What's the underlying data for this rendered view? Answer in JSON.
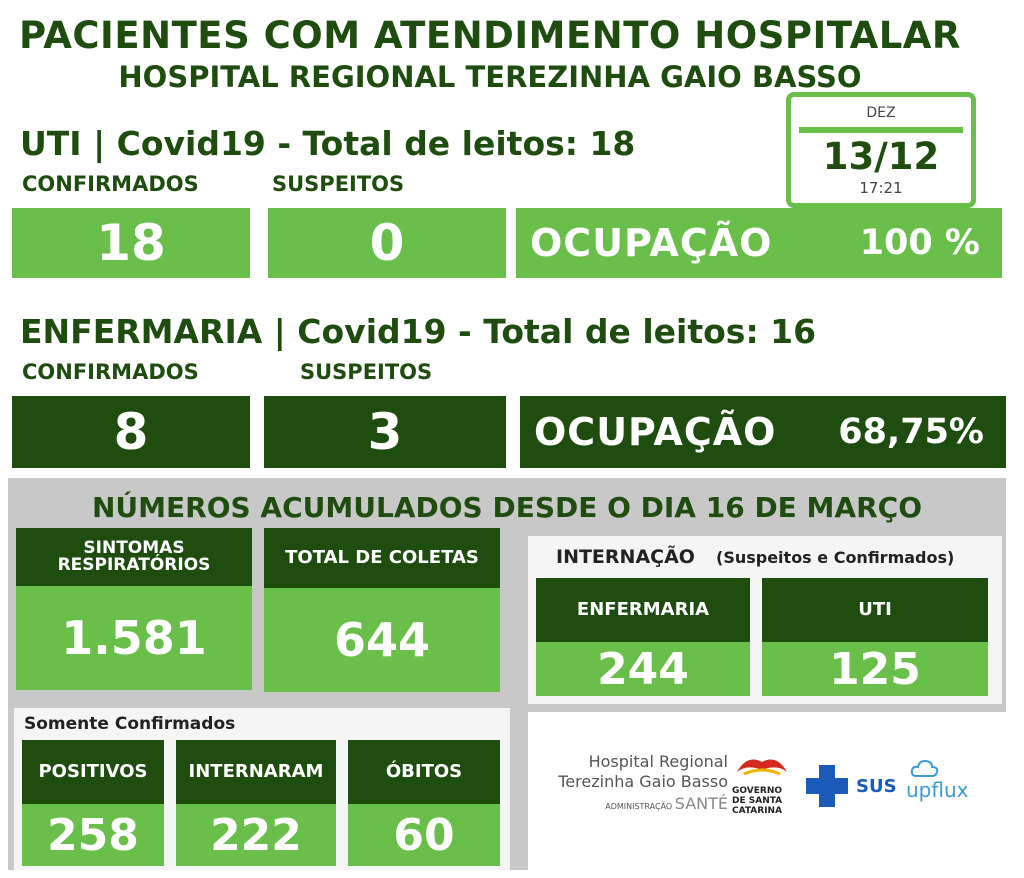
{
  "header": {
    "title": "PACIENTES COM ATENDIMENTO HOSPITALAR",
    "subtitle": "HOSPITAL REGIONAL TEREZINHA GAIO BASSO"
  },
  "date": {
    "month": "DEZ",
    "day": "13/12",
    "time": "17:21"
  },
  "uti": {
    "title": "UTI | Covid19 - Total de leitos: 18",
    "confirmed_label": "CONFIRMADOS",
    "suspect_label": "SUSPEITOS",
    "confirmed": "18",
    "suspect": "0",
    "occupancy_label": "OCUPAÇÃO",
    "occupancy": "100 %"
  },
  "enfermaria": {
    "title": "ENFERMARIA | Covid19 - Total de leitos: 16",
    "confirmed_label": "CONFIRMADOS",
    "suspect_label": "SUSPEITOS",
    "confirmed": "8",
    "suspect": "3",
    "occupancy_label": "OCUPAÇÃO",
    "occupancy": "68,75%"
  },
  "accumulated": {
    "title": "NÚMEROS ACUMULADOS DESDE O DIA 16 DE MARÇO",
    "sintomas_label": "SINTOMAS\nRESPIRATÓRIOS",
    "sintomas": "1.581",
    "coletas_label": "TOTAL DE COLETAS",
    "coletas": "644",
    "internacao_label": "INTERNAÇÃO",
    "internacao_note": "(Suspeitos e Confirmados)",
    "int_enfermaria_label": "ENFERMARIA",
    "int_enfermaria": "244",
    "int_uti_label": "UTI",
    "int_uti": "125"
  },
  "confirmed_only": {
    "title": "Somente Confirmados",
    "positivos_label": "POSITIVOS",
    "positivos": "258",
    "internaram_label": "INTERNARAM",
    "internaram": "222",
    "obitos_label": "ÓBITOS",
    "obitos": "60"
  },
  "logos": {
    "hospital_line1": "Hospital Regional",
    "hospital_line2": "Terezinha Gaio Basso",
    "admin": "ADMINISTRAÇÃO",
    "sante": "SANTÉ",
    "gov_line1": "GOVERNO",
    "gov_line2": "DE SANTA",
    "gov_line3": "CATARINA",
    "sus": "SUS",
    "upflux": "upflux"
  },
  "colors": {
    "dark_green": "#1f4d10",
    "light_green": "#6abf4b",
    "gray": "#c8c8c8"
  }
}
